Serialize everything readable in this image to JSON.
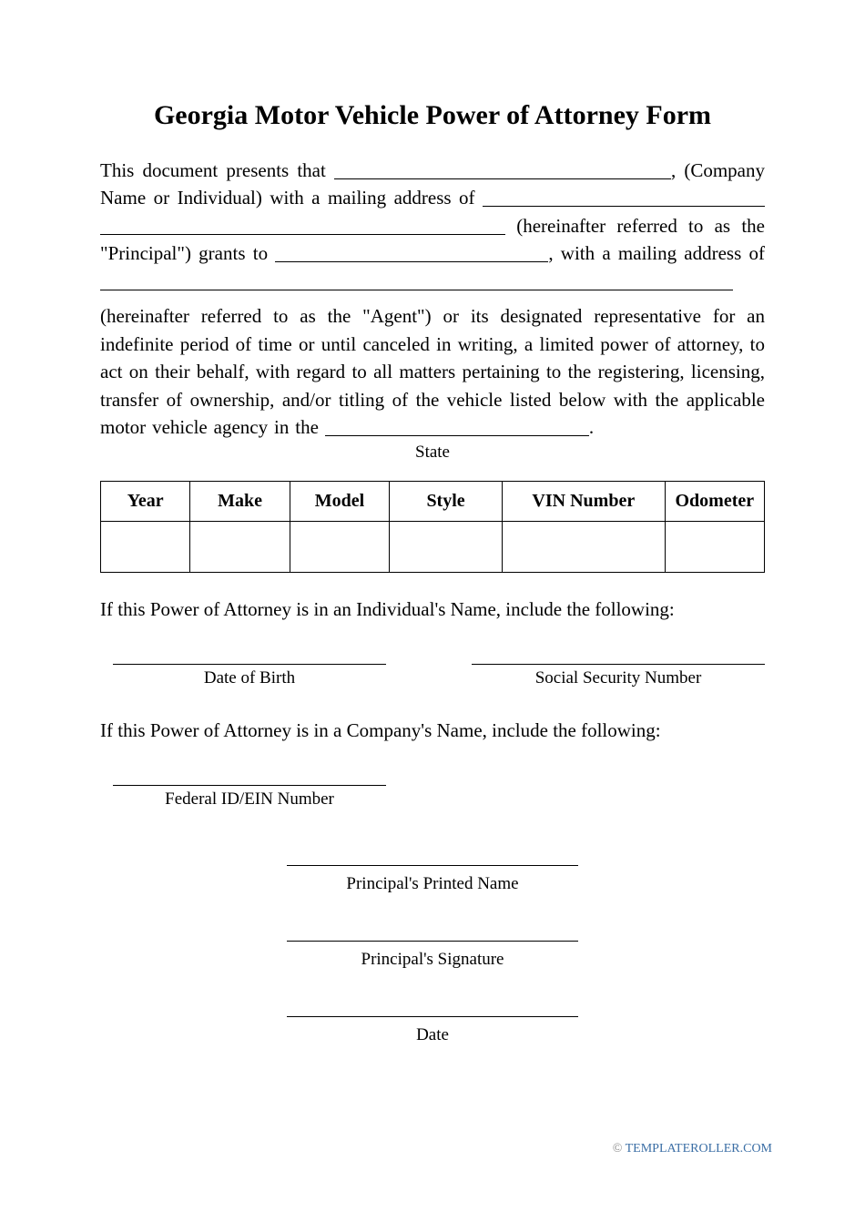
{
  "title": "Georgia Motor Vehicle Power of Attorney Form",
  "para": {
    "t1": "This document presents that ",
    "t2": ", (Company Name or Individual) with a mailing address of ",
    "t3": " (hereinafter referred to as the \"Principal\") grants to ",
    "t4": ", with a mailing address of ",
    "t5": "(hereinafter referred to as the \"Agent\") or its designated representative for an indefinite period of time or until canceled in writing, a limited power of attorney, to act on their behalf, with regard to all matters pertaining to the registering, licensing, transfer of ownership, and/or titling of the vehicle listed below with the applicable motor vehicle agency in the ",
    "t6": "."
  },
  "state_label": "State",
  "table": {
    "headers": [
      "Year",
      "Make",
      "Model",
      "Style",
      "VIN Number",
      "Odometer"
    ],
    "col_widths": [
      "13.5%",
      "15%",
      "15%",
      "17%",
      "24.5%",
      "15%"
    ]
  },
  "individual_note": "If this Power of Attorney is in an Individual's Name, include the following:",
  "company_note": "If this Power of Attorney is in a Company's Name, include the following:",
  "fields": {
    "dob_label": "Date of Birth",
    "dob_width": 300,
    "ssn_label": "Social Security Number",
    "ssn_width": 322,
    "ein_label": "Federal ID/EIN Number",
    "ein_width": 300
  },
  "sig": {
    "printed_name_label": "Principal's Printed Name",
    "signature_label": "Principal's Signature",
    "date_label": "Date",
    "line_width": 320
  },
  "footer": {
    "copy": "©",
    "site": " TEMPLATEROLLER.COM"
  }
}
